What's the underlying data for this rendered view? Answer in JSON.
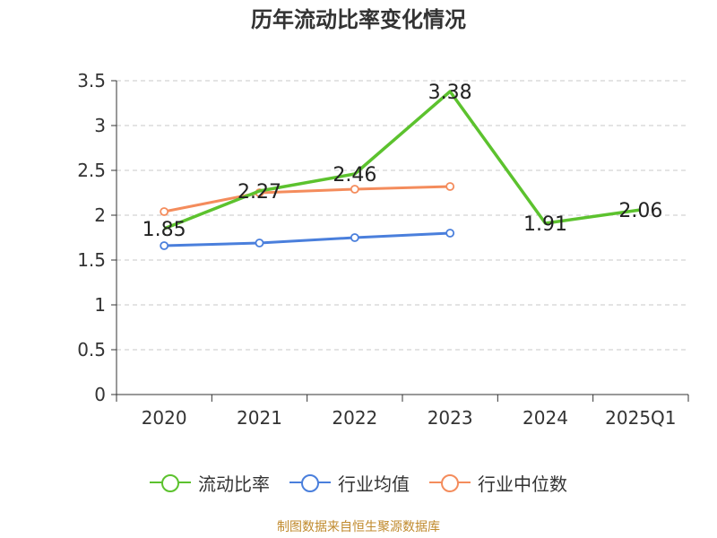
{
  "chart_data": {
    "type": "line",
    "title": "历年流动比率变化情况",
    "categories": [
      "2020",
      "2021",
      "2022",
      "2023",
      "2024",
      "2025Q1"
    ],
    "ylim": [
      0,
      3.5
    ],
    "yticks": [
      "0",
      "0.5",
      "1",
      "1.5",
      "2",
      "2.5",
      "3",
      "3.5"
    ],
    "grid": true,
    "legend_position": "bottom",
    "series": [
      {
        "name": "流动比率",
        "color": "#5cc22e",
        "values": [
          1.85,
          2.27,
          2.46,
          3.38,
          1.91,
          2.06
        ],
        "labels": [
          "1.85",
          "2.27",
          "2.46",
          "3.38",
          "1.91",
          "2.06"
        ],
        "show_markers": false
      },
      {
        "name": "行业均值",
        "color": "#4a7fdc",
        "values": [
          1.66,
          1.69,
          1.75,
          1.8,
          null,
          null
        ],
        "show_markers": true
      },
      {
        "name": "行业中位数",
        "color": "#f48c5c",
        "values": [
          2.04,
          2.25,
          2.29,
          2.32,
          null,
          null
        ],
        "show_markers": true
      }
    ]
  },
  "source": "制图数据来自恒生聚源数据库"
}
